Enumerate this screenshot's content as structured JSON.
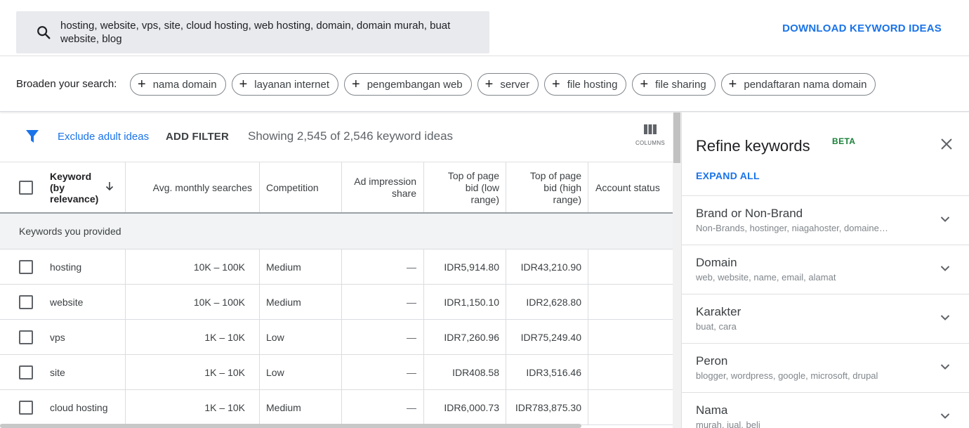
{
  "search": {
    "query": "hosting, website, vps, site, cloud hosting, web hosting, domain, domain murah, buat website, blog",
    "download_label": "DOWNLOAD KEYWORD IDEAS"
  },
  "broaden": {
    "label": "Broaden your search:",
    "chips": [
      "nama domain",
      "layanan internet",
      "pengembangan web",
      "server",
      "file hosting",
      "file sharing",
      "pendaftaran nama domain"
    ]
  },
  "filters": {
    "exclude_adult": "Exclude adult ideas",
    "add_filter": "ADD FILTER",
    "showing": "Showing 2,545 of 2,546 keyword ideas",
    "columns_label": "COLUMNS"
  },
  "table": {
    "headers": {
      "keyword": "Keyword",
      "keyword_sort_1": "(by",
      "keyword_sort_2": "relevance)",
      "avg_monthly": "Avg. monthly searches",
      "competition": "Competition",
      "ad_impression_1": "Ad impression",
      "ad_impression_2": "share",
      "top_low_1": "Top of page",
      "top_low_2": "bid (low",
      "top_low_3": "range)",
      "top_high_1": "Top of page",
      "top_high_2": "bid (high",
      "top_high_3": "range)",
      "account_status": "Account status"
    },
    "section_label": "Keywords you provided",
    "rows": [
      {
        "keyword": "hosting",
        "searches": "10K – 100K",
        "competition": "Medium",
        "impression": "—",
        "low": "IDR5,914.80",
        "high": "IDR43,210.90"
      },
      {
        "keyword": "website",
        "searches": "10K – 100K",
        "competition": "Medium",
        "impression": "—",
        "low": "IDR1,150.10",
        "high": "IDR2,628.80"
      },
      {
        "keyword": "vps",
        "searches": "1K – 10K",
        "competition": "Low",
        "impression": "—",
        "low": "IDR7,260.96",
        "high": "IDR75,249.40"
      },
      {
        "keyword": "site",
        "searches": "1K – 10K",
        "competition": "Low",
        "impression": "—",
        "low": "IDR408.58",
        "high": "IDR3,516.46"
      },
      {
        "keyword": "cloud hosting",
        "searches": "1K – 10K",
        "competition": "Medium",
        "impression": "—",
        "low": "IDR6,000.73",
        "high": "IDR783,875.30"
      }
    ]
  },
  "refine": {
    "title": "Refine keywords",
    "beta": "BETA",
    "expand_all": "EXPAND ALL",
    "items": [
      {
        "name": "Brand or Non-Brand",
        "sub": "Non-Brands, hostinger, niagahoster, domaine…"
      },
      {
        "name": "Domain",
        "sub": "web, website, name, email, alamat"
      },
      {
        "name": "Karakter",
        "sub": "buat, cara"
      },
      {
        "name": "Peron",
        "sub": "blogger, wordpress, google, microsoft, drupal"
      },
      {
        "name": "Nama",
        "sub": "murah, jual, beli"
      }
    ]
  },
  "colors": {
    "accent": "#1a73e8",
    "beta": "#188038",
    "search_bg": "#e8eaed",
    "section_bg": "#f1f3f4"
  }
}
